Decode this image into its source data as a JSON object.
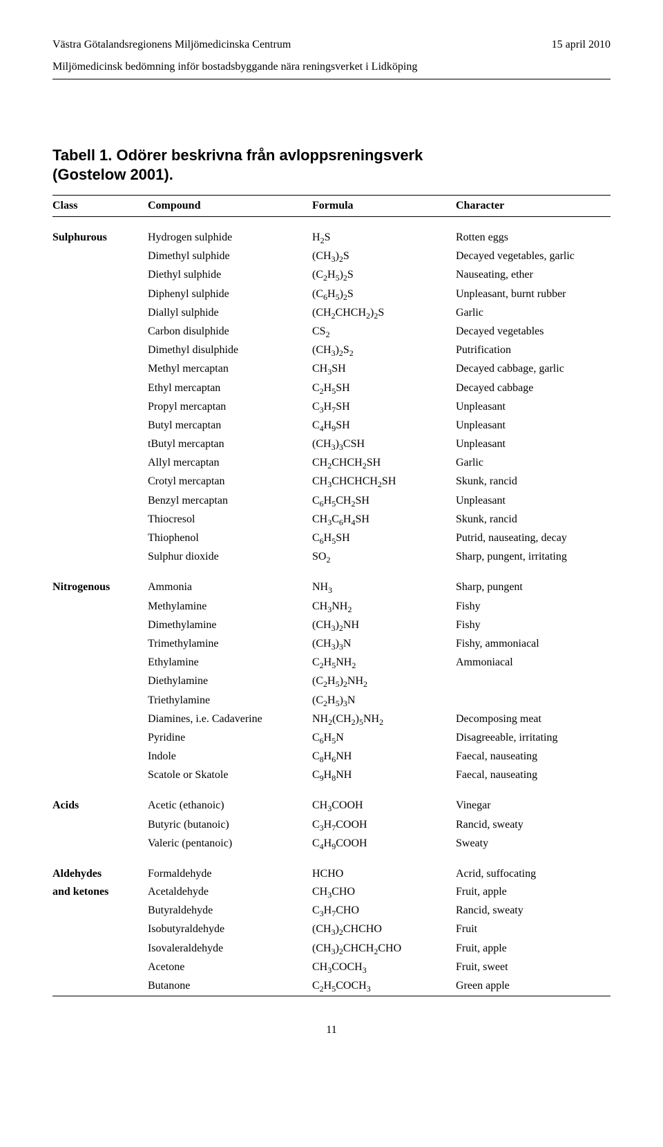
{
  "header": {
    "left": "Västra Götalandsregionens Miljömedicinska Centrum",
    "right": "15 april 2010",
    "sub": "Miljömedicinsk bedömning inför bostadsbyggande nära reningsverket i Lidköping"
  },
  "title": {
    "line1": "Tabell 1. Odörer beskrivna från avloppsreningsverk",
    "line2": "(Gostelow 2001)."
  },
  "columns": [
    "Class",
    "Compound",
    "Formula",
    "Character"
  ],
  "groups": [
    {
      "class": "Sulphurous",
      "rows": [
        {
          "compound": "Hydrogen sulphide",
          "formula": "H<sub>2</sub>S",
          "character": "Rotten eggs"
        },
        {
          "compound": "Dimethyl sulphide",
          "formula": "(CH<sub>3</sub>)<sub>2</sub>S",
          "character": "Decayed vegetables, garlic"
        },
        {
          "compound": "Diethyl sulphide",
          "formula": "(C<sub>2</sub>H<sub>5</sub>)<sub>2</sub>S",
          "character": "Nauseating, ether"
        },
        {
          "compound": "Diphenyl sulphide",
          "formula": "(C<sub>6</sub>H<sub>5</sub>)<sub>2</sub>S",
          "character": "Unpleasant, burnt rubber"
        },
        {
          "compound": "Diallyl sulphide",
          "formula": "(CH<sub>2</sub>CHCH<sub>2</sub>)<sub>2</sub>S",
          "character": "Garlic"
        },
        {
          "compound": "Carbon disulphide",
          "formula": "CS<sub>2</sub>",
          "character": "Decayed vegetables"
        },
        {
          "compound": "Dimethyl disulphide",
          "formula": "(CH<sub>3</sub>)<sub>2</sub>S<sub>2</sub>",
          "character": "Putrification"
        },
        {
          "compound": "Methyl mercaptan",
          "formula": "CH<sub>3</sub>SH",
          "character": "Decayed cabbage, garlic"
        },
        {
          "compound": "Ethyl mercaptan",
          "formula": "C<sub>2</sub>H<sub>5</sub>SH",
          "character": "Decayed cabbage"
        },
        {
          "compound": "Propyl mercaptan",
          "formula": "C<sub>3</sub>H<sub>7</sub>SH",
          "character": "Unpleasant"
        },
        {
          "compound": "Butyl mercaptan",
          "formula": "C<sub>4</sub>H<sub>9</sub>SH",
          "character": "Unpleasant"
        },
        {
          "compound": "tButyl mercaptan",
          "formula": "(CH<sub>3</sub>)<sub>3</sub>CSH",
          "character": "Unpleasant"
        },
        {
          "compound": "Allyl mercaptan",
          "formula": "CH<sub>2</sub>CHCH<sub>2</sub>SH",
          "character": "Garlic"
        },
        {
          "compound": "Crotyl mercaptan",
          "formula": "CH<sub>3</sub>CHCHCH<sub>2</sub>SH",
          "character": "Skunk, rancid"
        },
        {
          "compound": "Benzyl mercaptan",
          "formula": "C<sub>6</sub>H<sub>5</sub>CH<sub>2</sub>SH",
          "character": "Unpleasant"
        },
        {
          "compound": "Thiocresol",
          "formula": "CH<sub>3</sub>C<sub>6</sub>H<sub>4</sub>SH",
          "character": "Skunk, rancid"
        },
        {
          "compound": "Thiophenol",
          "formula": "C<sub>6</sub>H<sub>5</sub>SH",
          "character": "Putrid, nauseating, decay"
        },
        {
          "compound": "Sulphur dioxide",
          "formula": "SO<sub>2</sub>",
          "character": "Sharp, pungent, irritating"
        }
      ]
    },
    {
      "class": "Nitrogenous",
      "rows": [
        {
          "compound": "Ammonia",
          "formula": "NH<sub>3</sub>",
          "character": "Sharp, pungent"
        },
        {
          "compound": "Methylamine",
          "formula": "CH<sub>3</sub>NH<sub>2</sub>",
          "character": "Fishy"
        },
        {
          "compound": "Dimethylamine",
          "formula": "(CH<sub>3</sub>)<sub>2</sub>NH",
          "character": "Fishy"
        },
        {
          "compound": "Trimethylamine",
          "formula": "(CH<sub>3</sub>)<sub>3</sub>N",
          "character": "Fishy, ammoniacal"
        },
        {
          "compound": "Ethylamine",
          "formula": "C<sub>2</sub>H<sub>5</sub>NH<sub>2</sub>",
          "character": "Ammoniacal"
        },
        {
          "compound": "Diethylamine",
          "formula": "(C<sub>2</sub>H<sub>5</sub>)<sub>2</sub>NH<sub>2</sub>",
          "character": ""
        },
        {
          "compound": "Triethylamine",
          "formula": "(C<sub>2</sub>H<sub>5</sub>)<sub>3</sub>N",
          "character": ""
        },
        {
          "compound": "Diamines, i.e. Cadaverine",
          "formula": "NH<sub>2</sub>(CH<sub>2</sub>)<sub>5</sub>NH<sub>2</sub>",
          "character": "Decomposing meat"
        },
        {
          "compound": "Pyridine",
          "formula": "C<sub>6</sub>H<sub>5</sub>N",
          "character": "Disagreeable, irritating"
        },
        {
          "compound": "Indole",
          "formula": "C<sub>8</sub>H<sub>6</sub>NH",
          "character": "Faecal, nauseating"
        },
        {
          "compound": "Scatole or Skatole",
          "formula": "C<sub>9</sub>H<sub>8</sub>NH",
          "character": "Faecal, nauseating"
        }
      ]
    },
    {
      "class": "Acids",
      "rows": [
        {
          "compound": "Acetic (ethanoic)",
          "formula": "CH<sub>3</sub>COOH",
          "character": "Vinegar"
        },
        {
          "compound": "Butyric (butanoic)",
          "formula": "C<sub>3</sub>H<sub>7</sub>COOH",
          "character": "Rancid, sweaty"
        },
        {
          "compound": "Valeric (pentanoic)",
          "formula": "C<sub>4</sub>H<sub>9</sub>COOH",
          "character": "Sweaty"
        }
      ]
    },
    {
      "class": "Aldehydes",
      "class2": "and ketones",
      "rows": [
        {
          "compound": "Formaldehyde",
          "formula": "HCHO",
          "character": "Acrid, suffocating"
        },
        {
          "compound": "Acetaldehyde",
          "formula": "CH<sub>3</sub>CHO",
          "character": "Fruit, apple"
        },
        {
          "compound": "Butyraldehyde",
          "formula": "C<sub>3</sub>H<sub>7</sub>CHO",
          "character": "Rancid, sweaty"
        },
        {
          "compound": "Isobutyraldehyde",
          "formula": "(CH<sub>3</sub>)<sub>2</sub>CHCHO",
          "character": "Fruit"
        },
        {
          "compound": "Isovaleraldehyde",
          "formula": "(CH<sub>3</sub>)<sub>2</sub>CHCH<sub>2</sub>CHO",
          "character": "Fruit, apple"
        },
        {
          "compound": "Acetone",
          "formula": "CH<sub>3</sub>COCH<sub>3</sub>",
          "character": "Fruit, sweet"
        },
        {
          "compound": "Butanone",
          "formula": "C<sub>2</sub>H<sub>5</sub>COCH<sub>3</sub>",
          "character": "Green apple"
        }
      ]
    }
  ],
  "pageNumber": "11"
}
